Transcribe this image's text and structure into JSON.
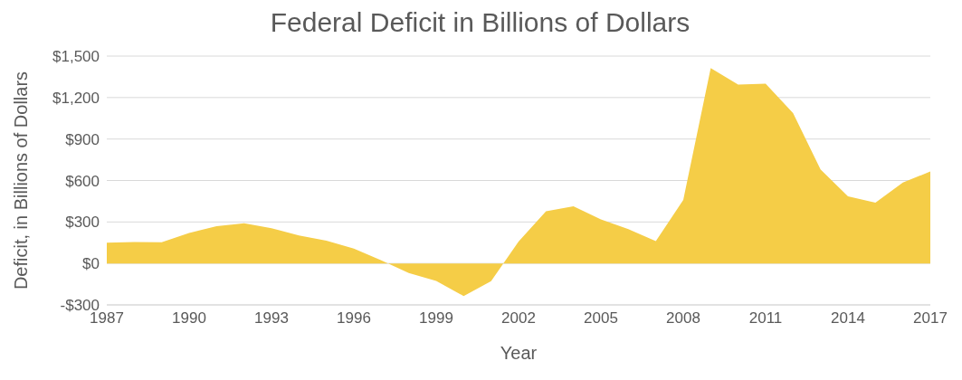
{
  "chart_data": {
    "type": "area",
    "title": "Federal Deficit in Billions of Dollars",
    "xlabel": "Year",
    "ylabel": "Deficit, in Billions of Dollars",
    "x": [
      1987,
      1988,
      1989,
      1990,
      1991,
      1992,
      1993,
      1994,
      1995,
      1996,
      1997,
      1998,
      1999,
      2000,
      2001,
      2002,
      2003,
      2004,
      2005,
      2006,
      2007,
      2008,
      2009,
      2010,
      2011,
      2012,
      2013,
      2014,
      2015,
      2016,
      2017
    ],
    "values": [
      150,
      155,
      153,
      221,
      269,
      290,
      255,
      203,
      164,
      107,
      22,
      -69,
      -126,
      -236,
      -128,
      158,
      378,
      413,
      318,
      248,
      161,
      459,
      1413,
      1294,
      1300,
      1087,
      680,
      485,
      439,
      585,
      665
    ],
    "color": "#f5cd47",
    "xlim": [
      1987,
      2017
    ],
    "xticks": [
      1987,
      1990,
      1993,
      1996,
      1999,
      2002,
      2005,
      2008,
      2011,
      2014,
      2017
    ],
    "ylim": [
      -300,
      1500
    ],
    "yticks": [
      {
        "value": -300,
        "label": "-$300"
      },
      {
        "value": 0,
        "label": "$0"
      },
      {
        "value": 300,
        "label": "$300"
      },
      {
        "value": 600,
        "label": "$600"
      },
      {
        "value": 900,
        "label": "$900"
      },
      {
        "value": 1200,
        "label": "$1,200"
      },
      {
        "value": 1500,
        "label": "$1,500"
      }
    ],
    "grid": "y",
    "legend": false
  }
}
